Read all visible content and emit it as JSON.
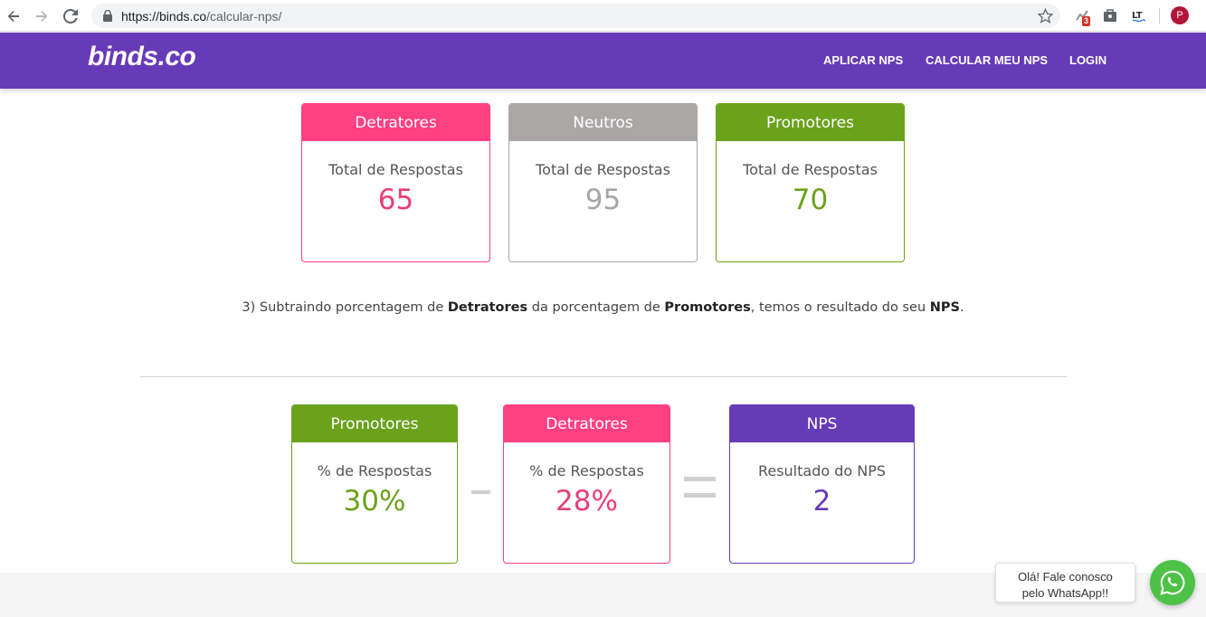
{
  "browser": {
    "url_host": "https://binds.co",
    "url_path": "/calcular-nps/",
    "extension_badge": "3",
    "profile_initial": "P"
  },
  "header": {
    "logo": "binds.co",
    "nav": [
      "APLICAR NPS",
      "CALCULAR MEU NPS",
      "LOGIN"
    ]
  },
  "totals": [
    {
      "title": "Detratores",
      "subtitle": "Total de Respostas",
      "value": "65"
    },
    {
      "title": "Neutros",
      "subtitle": "Total de Respostas",
      "value": "95"
    },
    {
      "title": "Promotores",
      "subtitle": "Total de Respostas",
      "value": "70"
    }
  ],
  "note": {
    "part1": "3) Subtraindo porcentagem de ",
    "bold1": "Detratores",
    "part2": " da porcentagem de ",
    "bold2": "Promotores",
    "part3": ", temos o resultado do seu ",
    "bold3": "NPS",
    "part4": "."
  },
  "calc": [
    {
      "title": "Promotores",
      "subtitle": "% de Respostas",
      "value": "30%"
    },
    {
      "title": "Detratores",
      "subtitle": "% de Respostas",
      "value": "28%"
    },
    {
      "title": "NPS",
      "subtitle": "Resultado do NPS",
      "value": "2"
    }
  ],
  "whatsapp": {
    "line1": "Olá! Fale conosco",
    "line2": "pelo WhatsApp!!"
  },
  "colors": {
    "brand_purple": "#673ab7",
    "detratores_pink": "#ff4081",
    "neutros_gray": "#aba7a7",
    "promotores_green": "#6aa21c",
    "whatsapp_green": "#4dc247"
  }
}
